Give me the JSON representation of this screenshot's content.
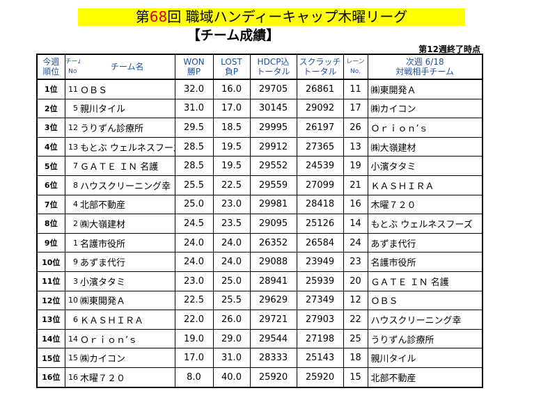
{
  "header": {
    "title_before": "第",
    "title_number": "68",
    "title_after": "回 職域ハンディーキャップ木曜リーグ",
    "subtitle": "【チーム成績】",
    "note": "第12週終了時点"
  },
  "table": {
    "header": [
      [
        "今週",
        "順位"
      ],
      [
        "チーム",
        "No"
      ],
      [
        "チーム名"
      ],
      [
        "WON",
        "勝P"
      ],
      [
        "LOST",
        "負P"
      ],
      [
        "HDCP込",
        "トータル"
      ],
      [
        "スクラッチ",
        "トータル"
      ],
      [
        "レーン",
        "No."
      ],
      [
        "次週 6/18",
        "対戦相手チーム"
      ]
    ],
    "rows": [
      [
        "1位",
        "11",
        "ＯＢＳ",
        "32.0",
        "16.0",
        "29705",
        "26861",
        "11",
        "㈱東開発Ａ"
      ],
      [
        "2位",
        "5",
        "親川タイル",
        "31.0",
        "17.0",
        "30145",
        "29092",
        "17",
        "㈱カイコン"
      ],
      [
        "3位",
        "12",
        "うりずん診療所",
        "29.5",
        "18.5",
        "29995",
        "26197",
        "26",
        "Ｏｒｉｏｎ’ｓ"
      ],
      [
        "4位",
        "13",
        "もとぶ ウェルネスフーズ",
        "28.5",
        "19.5",
        "29912",
        "27365",
        "13",
        "㈱大嶺建材"
      ],
      [
        "5位",
        "7",
        "ＧＡＴＥ ＩＮ 名護",
        "28.5",
        "19.5",
        "29552",
        "24539",
        "19",
        "小濱タタミ"
      ],
      [
        "6位",
        "8",
        "ハウスクリーニング幸",
        "25.5",
        "22.5",
        "29559",
        "27099",
        "21",
        "ＫＡＳＨＩＲＡ"
      ],
      [
        "7位",
        "4",
        "北部不動産",
        "25.0",
        "23.0",
        "29981",
        "28418",
        "16",
        "木曜７２０"
      ],
      [
        "8位",
        "2",
        "㈱大嶺建材",
        "24.5",
        "23.5",
        "29095",
        "25126",
        "14",
        "もとぶ ウェルネスフーズ"
      ],
      [
        "9位",
        "1",
        "名護市役所",
        "24.0",
        "24.0",
        "26352",
        "26584",
        "24",
        "あずま代行"
      ],
      [
        "10位",
        "9",
        "あずま代行",
        "24.0",
        "24.0",
        "29088",
        "23949",
        "23",
        "名護市役所"
      ],
      [
        "11位",
        "3",
        "小濱タタミ",
        "23.0",
        "25.0",
        "28941",
        "25939",
        "20",
        "ＧＡＴＥ ＩＮ 名護"
      ],
      [
        "12位",
        "10",
        "㈱東開発Ａ",
        "22.5",
        "25.5",
        "29629",
        "27349",
        "12",
        "ＯＢＳ"
      ],
      [
        "13位",
        "6",
        "ＫＡＳＨＩＲＡ",
        "22.0",
        "26.0",
        "29721",
        "27903",
        "22",
        "ハウスクリーニング幸"
      ],
      [
        "14位",
        "14",
        "Ｏｒｉｏｎ’ｓ",
        "19.0",
        "29.0",
        "29544",
        "27198",
        "25",
        "うりずん診療所"
      ],
      [
        "15位",
        "15",
        "㈱カイコン",
        "17.0",
        "31.0",
        "28333",
        "25143",
        "18",
        "親川タイル"
      ],
      [
        "16位",
        "16",
        "木曜７２０",
        "8.0",
        "40.0",
        "25920",
        "25920",
        "15",
        "北部不動産"
      ]
    ]
  }
}
